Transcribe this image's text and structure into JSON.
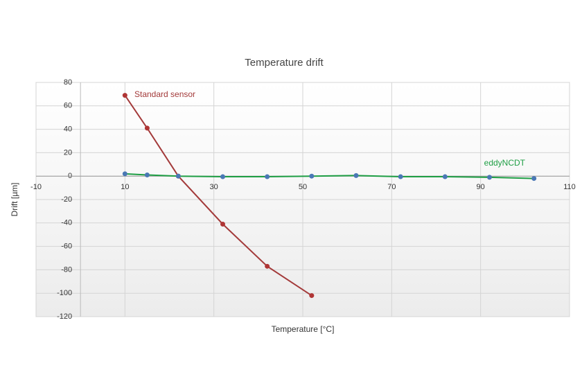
{
  "chart_data": {
    "type": "line",
    "title": "Temperature drift",
    "x_label": "Temperature [°C]",
    "y_label": "Drift [µm]",
    "xlim": [
      -10,
      110
    ],
    "xticks": [
      -10,
      10,
      30,
      50,
      70,
      90,
      110
    ],
    "ylim": [
      -120,
      80
    ],
    "yticks": [
      -120,
      -100,
      -80,
      -60,
      -40,
      -20,
      0,
      20,
      40,
      60,
      80
    ],
    "grid": true,
    "annotations": [
      "Standard sensor",
      "eddyNCDT"
    ],
    "series": [
      {
        "name": "Standard sensor",
        "color": "#a33a3a",
        "marker_color": "#b03535",
        "x": [
          10,
          15,
          22,
          32,
          42,
          52
        ],
        "values": [
          69,
          41,
          0,
          -41,
          -77,
          -102
        ]
      },
      {
        "name": "eddyNCDT",
        "color": "#1e9e44",
        "marker_color": "#4a78b5",
        "x": [
          10,
          15,
          22,
          32,
          42,
          52,
          62,
          72,
          82,
          92,
          102
        ],
        "values": [
          2,
          1,
          0,
          -0.5,
          -0.5,
          0,
          0.5,
          -0.5,
          -0.5,
          -1,
          -2
        ]
      }
    ]
  }
}
